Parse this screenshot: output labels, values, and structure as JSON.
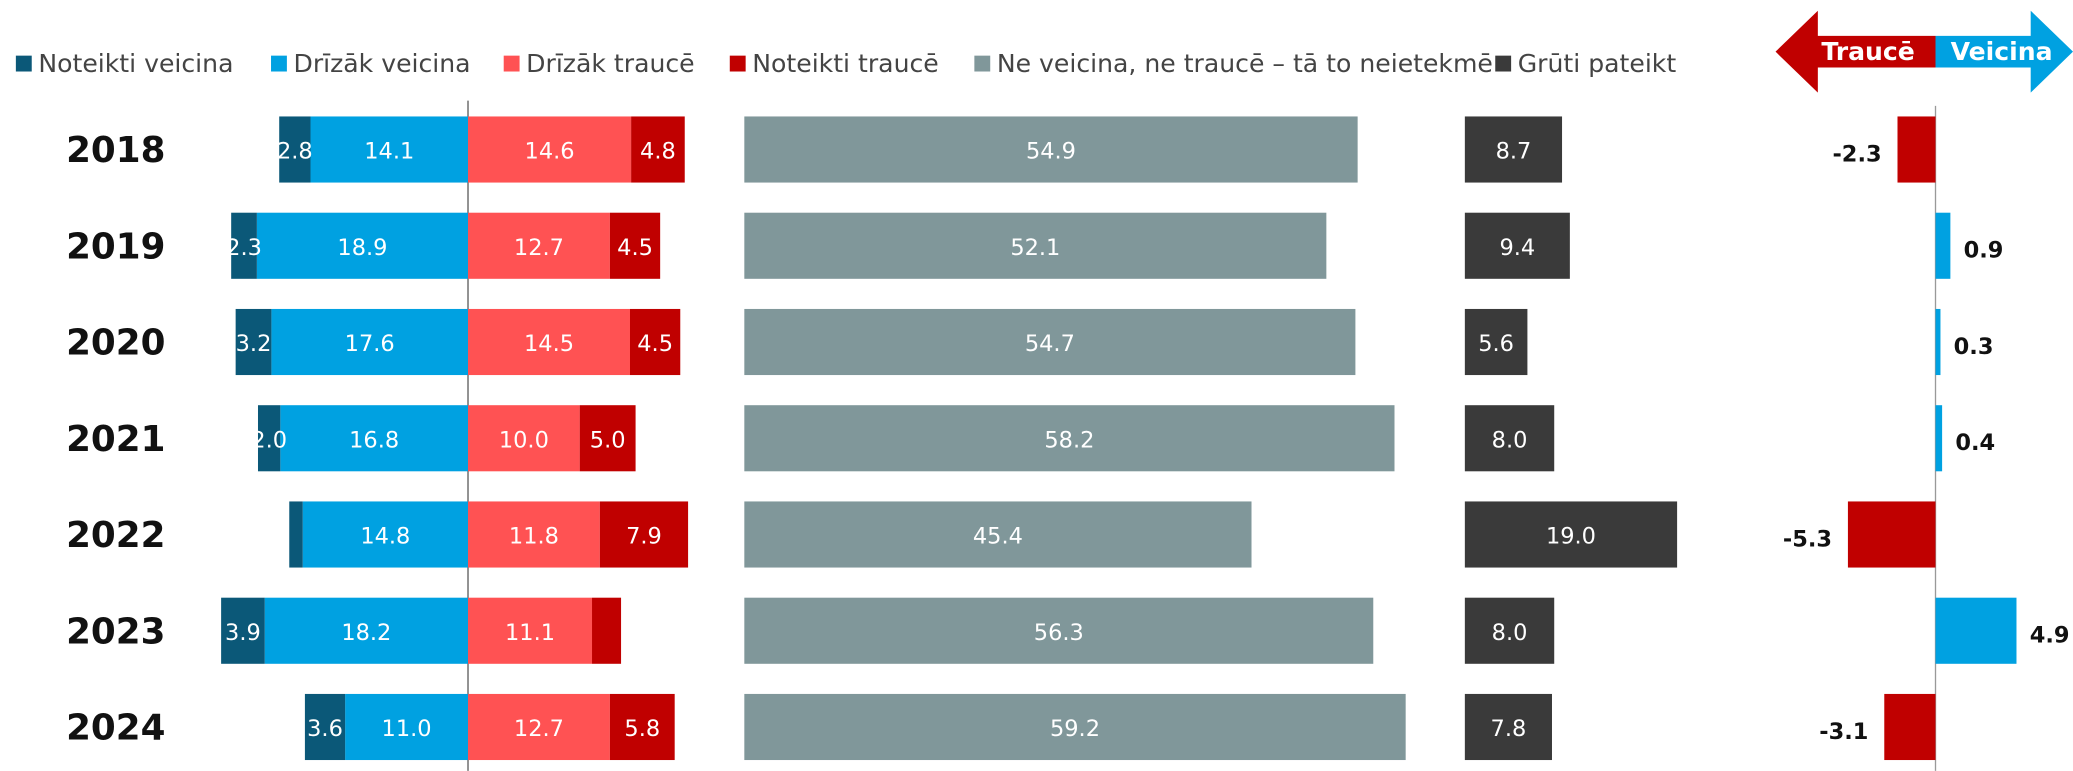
{
  "chart_data": {
    "type": "diverging_bar",
    "categories": [
      "2018",
      "2019",
      "2020",
      "2021",
      "2022",
      "2023",
      "2024"
    ],
    "series": [
      {
        "name": "Noteikti veicina",
        "color": "#0b5878",
        "values": [
          2.8,
          2.3,
          3.2,
          2.0,
          1.2,
          3.9,
          3.6
        ],
        "value_labels": [
          "2.8",
          "2.3",
          "3.2",
          "2.0",
          null,
          "3.9",
          "3.6"
        ]
      },
      {
        "name": "Drīzāk veicina",
        "color": "#00a1e1",
        "values": [
          14.1,
          18.9,
          17.6,
          16.8,
          14.8,
          18.2,
          11.0
        ],
        "value_labels": [
          "14.1",
          "18.9",
          "17.6",
          "16.8",
          "14.8",
          "18.2",
          "11.0"
        ]
      },
      {
        "name": "Drīzāk traucē",
        "color": "#ff5253",
        "values": [
          14.6,
          12.7,
          14.5,
          10.0,
          11.8,
          11.1,
          12.7
        ],
        "value_labels": [
          "14.6",
          "12.7",
          "14.5",
          "10.0",
          "11.8",
          "11.1",
          "12.7"
        ]
      },
      {
        "name": "Noteikti traucē",
        "color": "#c00000",
        "values": [
          4.8,
          4.5,
          4.5,
          5.0,
          7.9,
          2.6,
          5.8
        ],
        "value_labels": [
          "4.8",
          "4.5",
          "4.5",
          "5.0",
          "7.9",
          null,
          "5.8"
        ]
      },
      {
        "name": "Ne veicina, ne traucē – tā to neietekmē",
        "color": "#80979a",
        "values": [
          54.9,
          52.1,
          54.7,
          58.2,
          45.4,
          56.3,
          59.2
        ],
        "value_labels": [
          "54.9",
          "52.1",
          "54.7",
          "58.2",
          "45.4",
          "56.3",
          "59.2"
        ]
      },
      {
        "name": "Grūti pateikt",
        "color": "#3a3a3a",
        "values": [
          8.7,
          9.4,
          5.6,
          8.0,
          19.0,
          8.0,
          7.8
        ],
        "value_labels": [
          "8.7",
          "9.4",
          "5.6",
          "8.0",
          "19.0",
          "8.0",
          "7.8"
        ]
      }
    ],
    "net": {
      "values": [
        -2.3,
        0.9,
        0.3,
        0.4,
        -5.3,
        4.9,
        -3.1
      ],
      "negative_color": "#c00000",
      "positive_color": "#00a1e1"
    },
    "arrow_labels": [
      "Traucē",
      "Veicina"
    ]
  }
}
